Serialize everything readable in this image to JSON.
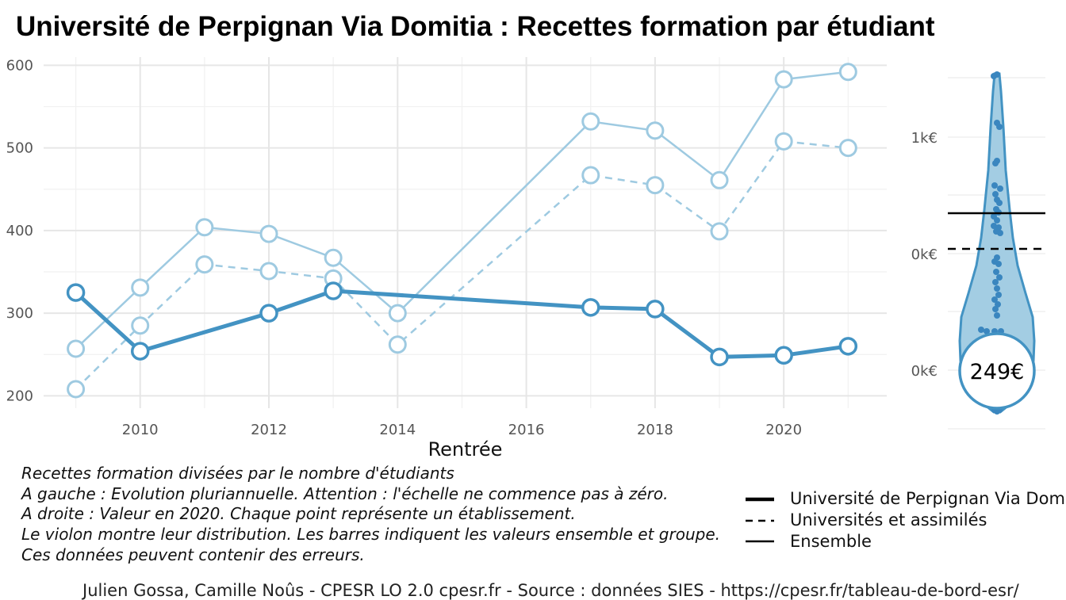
{
  "title": "Université de Perpignan Via Domitia  :  Recettes formation par étudiant",
  "chart_data": [
    {
      "type": "line",
      "xlabel": "Rentrée",
      "ylabel": "",
      "xlim": [
        2008.5,
        2021.6
      ],
      "ylim": [
        185,
        610
      ],
      "x_ticks": [
        2010,
        2012,
        2014,
        2016,
        2018,
        2020
      ],
      "y_ticks": [
        200,
        300,
        400,
        500,
        600
      ],
      "grid": true,
      "series": [
        {
          "name": "Université de Perpignan Via Domitia",
          "style": "bold-solid",
          "color": "#4393c3",
          "points": [
            [
              2009,
              325
            ],
            [
              2010,
              254
            ],
            [
              2012,
              300
            ],
            [
              2013,
              327
            ],
            [
              2017,
              307
            ],
            [
              2018,
              305
            ],
            [
              2019,
              247
            ],
            [
              2020,
              249
            ],
            [
              2021,
              260
            ]
          ]
        },
        {
          "name": "Universités et assimilés",
          "style": "dashed",
          "color": "#9ecae1",
          "points": [
            [
              2009,
              208
            ],
            [
              2010,
              285
            ],
            [
              2011,
              359
            ],
            [
              2012,
              351
            ],
            [
              2013,
              342
            ],
            [
              2014,
              262
            ],
            [
              2017,
              467
            ],
            [
              2018,
              455
            ],
            [
              2019,
              399
            ],
            [
              2020,
              508
            ],
            [
              2021,
              500
            ]
          ]
        },
        {
          "name": "Ensemble",
          "style": "solid",
          "color": "#9ecae1",
          "points": [
            [
              2009,
              257
            ],
            [
              2010,
              331
            ],
            [
              2011,
              404
            ],
            [
              2012,
              396
            ],
            [
              2013,
              367
            ],
            [
              2014,
              300
            ],
            [
              2017,
              532
            ],
            [
              2018,
              521
            ],
            [
              2019,
              461
            ],
            [
              2020,
              583
            ],
            [
              2021,
              592
            ]
          ]
        }
      ]
    },
    {
      "type": "violin",
      "y_tick_labels": [
        "1k€",
        "0k€",
        "0k€"
      ],
      "highlight_value_label": "249€",
      "lines": [
        {
          "label": "Ensemble",
          "style": "solid",
          "color": "#000000"
        },
        {
          "label": "Universités et assimilés",
          "style": "dashed",
          "color": "#000000"
        }
      ],
      "color": "#4393c3"
    }
  ],
  "legend": {
    "items": [
      {
        "label": "Université de Perpignan Via Domitia",
        "style": "bold"
      },
      {
        "label": "Universités et assimilés",
        "style": "dashed"
      },
      {
        "label": "Ensemble",
        "style": "solid"
      }
    ]
  },
  "notes": [
    "Recettes formation divisées par le nombre d'étudiants",
    "A gauche : Evolution pluriannuelle. Attention : l'échelle ne commence pas à zéro.",
    "A droite : Valeur en 2020. Chaque point représente un établissement.",
    "Le violon montre leur distribution. Les barres indiquent les valeurs ensemble et groupe.",
    "Ces données peuvent contenir des erreurs."
  ],
  "caption": "Julien Gossa, Camille Noûs - CPESR LO 2.0 cpesr.fr - Source : données SIES - https://cpesr.fr/tableau-de-bord-esr/"
}
